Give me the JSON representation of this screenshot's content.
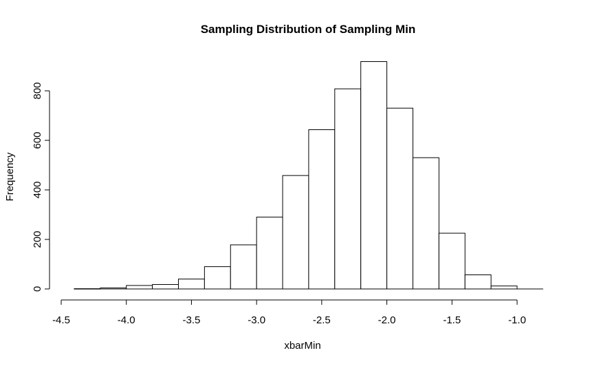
{
  "chart_data": {
    "type": "bar",
    "title": "Sampling Distribution of Sampling Min",
    "xlabel": "xbarMin",
    "ylabel": "Frequency",
    "bin_edges": [
      -4.4,
      -4.2,
      -4.0,
      -3.8,
      -3.6,
      -3.4,
      -3.2,
      -3.0,
      -2.8,
      -2.6,
      -2.4,
      -2.2,
      -2.0,
      -1.8,
      -1.6,
      -1.4,
      -1.2,
      -1.0
    ],
    "values": [
      1,
      4,
      14,
      18,
      40,
      90,
      178,
      290,
      458,
      643,
      808,
      918,
      730,
      530,
      225,
      57,
      12
    ],
    "xlim": [
      -4.5,
      -0.8
    ],
    "ylim": [
      0,
      918
    ],
    "x_ticks": [
      "-4.5",
      "-4.0",
      "-3.5",
      "-3.0",
      "-2.5",
      "-2.0",
      "-1.5",
      "-1.0"
    ],
    "x_tick_values": [
      -4.5,
      -4.0,
      -3.5,
      -3.0,
      -2.5,
      -2.0,
      -1.5,
      -1.0
    ],
    "y_ticks": [
      "0",
      "200",
      "400",
      "600",
      "800"
    ],
    "y_tick_values": [
      0,
      200,
      400,
      600,
      800
    ],
    "grid": false,
    "colors": {
      "bar_fill": "#ffffff",
      "bar_stroke": "#000000"
    }
  }
}
